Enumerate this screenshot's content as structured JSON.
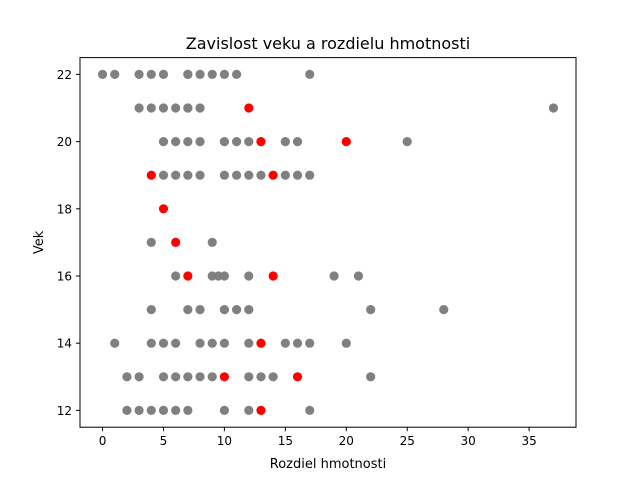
{
  "chart_data": {
    "type": "scatter",
    "title": "Zavislost veku a rozdielu hmotnosti",
    "xlabel": "Rozdiel hmotnosti",
    "ylabel": "Vek",
    "xlim": [
      -1.85,
      38.85
    ],
    "ylim": [
      11.5,
      22.5
    ],
    "xticks": [
      0,
      5,
      10,
      15,
      20,
      25,
      30,
      35
    ],
    "yticks": [
      12,
      14,
      16,
      18,
      20,
      22
    ],
    "grid": false,
    "colors": {
      "default": "#808080",
      "highlight": "#ff0000"
    },
    "series": [
      {
        "color": "#808080",
        "points": [
          [
            0,
            22
          ],
          [
            1,
            22
          ],
          [
            3,
            22
          ],
          [
            4,
            22
          ],
          [
            5,
            22
          ],
          [
            7,
            22
          ],
          [
            7,
            22
          ],
          [
            8,
            22
          ],
          [
            9,
            22
          ],
          [
            10,
            22
          ],
          [
            11,
            22
          ],
          [
            17,
            22
          ],
          [
            3,
            21
          ],
          [
            4,
            21
          ],
          [
            5,
            21
          ],
          [
            6,
            21
          ],
          [
            7,
            21
          ],
          [
            7,
            21
          ],
          [
            8,
            21
          ],
          [
            37,
            21
          ],
          [
            5,
            20
          ],
          [
            6,
            20
          ],
          [
            7,
            20
          ],
          [
            8,
            20
          ],
          [
            10,
            20
          ],
          [
            11,
            20
          ],
          [
            12,
            20
          ],
          [
            15,
            20
          ],
          [
            16,
            20
          ],
          [
            25,
            20
          ],
          [
            5,
            19
          ],
          [
            6,
            19
          ],
          [
            7,
            19
          ],
          [
            8,
            19
          ],
          [
            10,
            19
          ],
          [
            11,
            19
          ],
          [
            12,
            19
          ],
          [
            13,
            19
          ],
          [
            15,
            19
          ],
          [
            16,
            19
          ],
          [
            17,
            19
          ],
          [
            4,
            17
          ],
          [
            9,
            17
          ],
          [
            6,
            16
          ],
          [
            9,
            16
          ],
          [
            9.5,
            16
          ],
          [
            10,
            16
          ],
          [
            12,
            16
          ],
          [
            19,
            16
          ],
          [
            21,
            16
          ],
          [
            4,
            15
          ],
          [
            7,
            15
          ],
          [
            8,
            15
          ],
          [
            10,
            15
          ],
          [
            11,
            15
          ],
          [
            12,
            15
          ],
          [
            22,
            15
          ],
          [
            28,
            15
          ],
          [
            1,
            14
          ],
          [
            4,
            14
          ],
          [
            5,
            14
          ],
          [
            6,
            14
          ],
          [
            8,
            14
          ],
          [
            9,
            14
          ],
          [
            10,
            14
          ],
          [
            12,
            14
          ],
          [
            15,
            14
          ],
          [
            16,
            14
          ],
          [
            17,
            14
          ],
          [
            20,
            14
          ],
          [
            2,
            13
          ],
          [
            3,
            13
          ],
          [
            5,
            13
          ],
          [
            6,
            13
          ],
          [
            7,
            13
          ],
          [
            8,
            13
          ],
          [
            9,
            13
          ],
          [
            12,
            13
          ],
          [
            13,
            13
          ],
          [
            14,
            13
          ],
          [
            22,
            13
          ],
          [
            2,
            12
          ],
          [
            3,
            12
          ],
          [
            4,
            12
          ],
          [
            5,
            12
          ],
          [
            6,
            12
          ],
          [
            7,
            12
          ],
          [
            10,
            12
          ],
          [
            12,
            12
          ],
          [
            17,
            12
          ]
        ]
      },
      {
        "color": "#ff0000",
        "points": [
          [
            12,
            21
          ],
          [
            13,
            20
          ],
          [
            20,
            20
          ],
          [
            4,
            19
          ],
          [
            14,
            19
          ],
          [
            5,
            18
          ],
          [
            6,
            17
          ],
          [
            7,
            16
          ],
          [
            14,
            16
          ],
          [
            13,
            14
          ],
          [
            10,
            13
          ],
          [
            16,
            13
          ],
          [
            13,
            12
          ]
        ]
      }
    ]
  }
}
